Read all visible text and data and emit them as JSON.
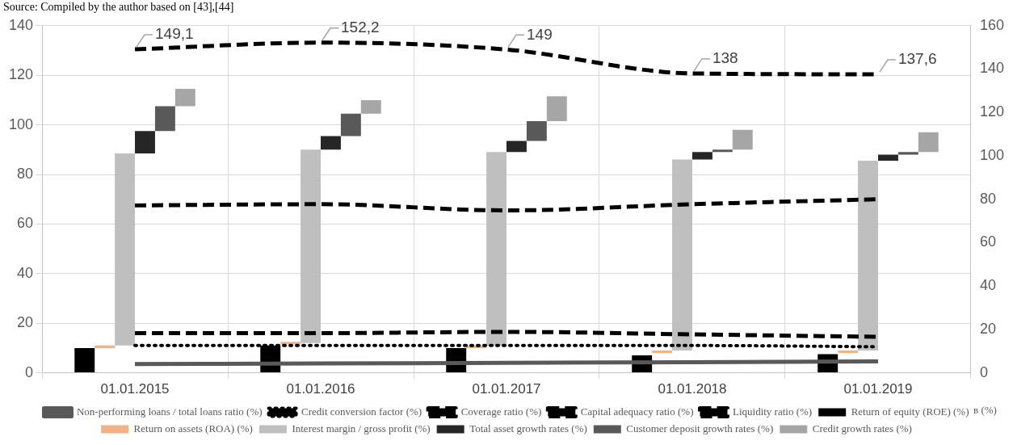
{
  "chart_data": {
    "type": "bar",
    "categories": [
      "01.01.2015",
      "01.01.2016",
      "01.01.2017",
      "01.01.2018",
      "01.01.2019"
    ],
    "ylim": [
      0,
      140
    ],
    "yticks": [
      0,
      20,
      40,
      60,
      80,
      100,
      120,
      140
    ],
    "y2lim": [
      0,
      160
    ],
    "y2ticks": [
      0,
      20,
      40,
      60,
      80,
      100,
      120,
      140,
      160
    ],
    "grid": true,
    "legend": "bottom",
    "marker": "none",
    "annotations": [
      "Source: Compiled by the author based on [43],[44]",
      "в (%)"
    ],
    "series": [
      {
        "name": "Return of equity (ROE) (%)",
        "color": "#000000",
        "base": [
          0,
          0,
          0,
          0,
          0
        ],
        "values": [
          10,
          11,
          10,
          7,
          7.5
        ]
      },
      {
        "name": "Return on assets (ROA) (%)",
        "color": "#f4b183",
        "base": [
          10,
          11.5,
          10,
          8,
          8
        ],
        "values": [
          1,
          1,
          1,
          1,
          1
        ]
      },
      {
        "name": "Interest margin / gross profit (%)",
        "color": "#bfbfbf",
        "base": [
          11,
          12,
          11,
          9,
          9
        ],
        "values": [
          77.5,
          78,
          78,
          77,
          76.5
        ]
      },
      {
        "name": "Total asset growth rates (%)",
        "color": "#262626",
        "base": [
          88.5,
          90,
          89,
          86,
          85.5
        ],
        "values": [
          9,
          5.5,
          4.5,
          3,
          2.5
        ]
      },
      {
        "name": "Customer deposit growth rates (%)",
        "color": "#595959",
        "base": [
          97.5,
          95.5,
          93.5,
          89,
          88
        ],
        "values": [
          10,
          9,
          8,
          1,
          1
        ]
      },
      {
        "name": "Credit growth rates (%)",
        "color": "#a6a6a6",
        "base": [
          107.5,
          104.5,
          101.5,
          90,
          89
        ],
        "values": [
          7,
          5.5,
          10,
          8,
          8
        ]
      },
      {
        "name": "Non-performing loans / total loans ratio (%)",
        "type": "line",
        "color": "#595959",
        "line_style": "solid",
        "values": [
          3.5,
          3.8,
          4,
          4.3,
          4.6
        ]
      },
      {
        "name": "Credit conversion factor (%)",
        "type": "line",
        "color": "#000000",
        "line_style": "dotted",
        "values": [
          11,
          11,
          11,
          11,
          10.5
        ]
      },
      {
        "name": "Coverage ratio (%)",
        "type": "line",
        "color": "#000000",
        "line_style": "dashed",
        "values": [
          67.5,
          68,
          65.5,
          68,
          70
        ]
      },
      {
        "name": "Capital adequacy ratio (%)",
        "type": "line",
        "color": "#000000",
        "line_style": "dashed",
        "values": [
          16,
          16,
          16.5,
          15.5,
          14.5
        ]
      },
      {
        "name": "Liquidity ratio (%)",
        "type": "line",
        "axis": "y2",
        "color": "#000000",
        "line_style": "dashed",
        "values": [
          149.1,
          152.2,
          149,
          138,
          137.6
        ],
        "value_labels": [
          "149,1",
          "152,2",
          "149",
          "138",
          "137,6"
        ]
      }
    ]
  }
}
